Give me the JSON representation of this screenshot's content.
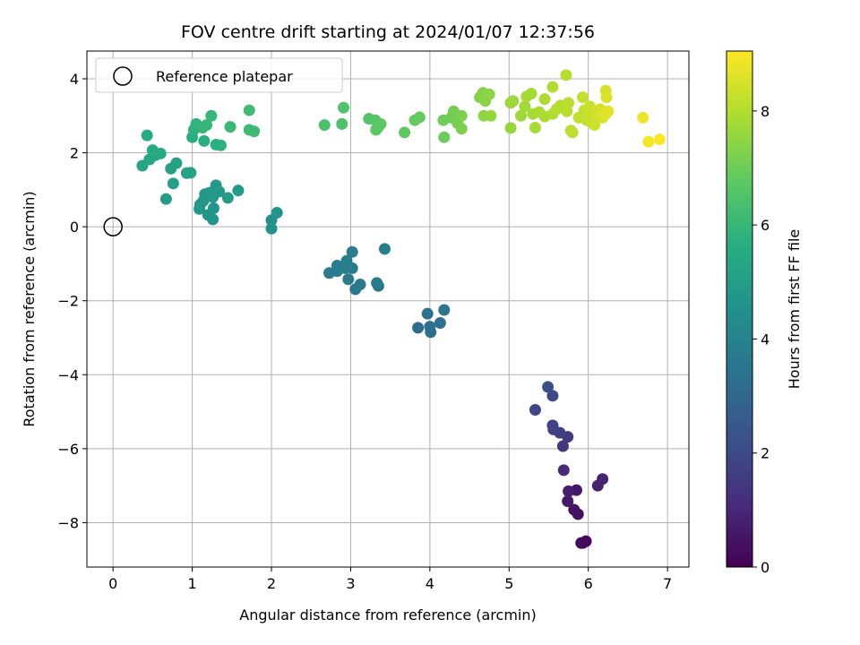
{
  "chart_data": {
    "type": "scatter",
    "title": "FOV centre drift starting at 2024/01/07 12:37:56",
    "xlabel": "Angular distance from reference (arcmin)",
    "ylabel": "Rotation from reference (arcmin)",
    "xlim": [
      -0.33,
      7.27
    ],
    "ylim": [
      -9.2,
      4.75
    ],
    "xticks": [
      0,
      1,
      2,
      3,
      4,
      5,
      6,
      7
    ],
    "yticks": [
      -8,
      -6,
      -4,
      -2,
      0,
      2,
      4
    ],
    "grid": true,
    "legend": {
      "location": "top-left",
      "entries": [
        "Reference platepar"
      ]
    },
    "reference_point": {
      "x": 0,
      "y": 0,
      "label": "Reference platepar"
    },
    "colorbar": {
      "label": "Hours from first FF file",
      "colormap": "viridis",
      "range": [
        0,
        9.05
      ],
      "ticks": [
        0,
        2,
        4,
        6,
        8
      ]
    },
    "points": [
      {
        "x": 5.91,
        "y": -8.55,
        "t": 0.1
      },
      {
        "x": 5.97,
        "y": -8.5,
        "t": 0.18
      },
      {
        "x": 5.93,
        "y": -8.55,
        "t": 0.25
      },
      {
        "x": 5.87,
        "y": -7.77,
        "t": 0.35
      },
      {
        "x": 5.82,
        "y": -7.65,
        "t": 0.45
      },
      {
        "x": 5.85,
        "y": -7.12,
        "t": 0.55
      },
      {
        "x": 5.74,
        "y": -7.42,
        "t": 0.65
      },
      {
        "x": 5.75,
        "y": -7.15,
        "t": 0.75
      },
      {
        "x": 6.12,
        "y": -7.0,
        "t": 0.85
      },
      {
        "x": 6.18,
        "y": -6.82,
        "t": 0.92
      },
      {
        "x": 5.69,
        "y": -6.58,
        "t": 1.05
      },
      {
        "x": 5.68,
        "y": -5.93,
        "t": 1.45
      },
      {
        "x": 5.74,
        "y": -5.68,
        "t": 1.55
      },
      {
        "x": 5.64,
        "y": -5.57,
        "t": 1.65
      },
      {
        "x": 5.56,
        "y": -5.48,
        "t": 1.75
      },
      {
        "x": 5.55,
        "y": -5.37,
        "t": 1.8
      },
      {
        "x": 5.33,
        "y": -4.95,
        "t": 1.9
      },
      {
        "x": 5.55,
        "y": -4.57,
        "t": 2.0
      },
      {
        "x": 5.49,
        "y": -4.33,
        "t": 2.1
      },
      {
        "x": 3.85,
        "y": -2.73,
        "t": 3.2
      },
      {
        "x": 4.01,
        "y": -2.85,
        "t": 3.25
      },
      {
        "x": 4.0,
        "y": -2.7,
        "t": 3.3
      },
      {
        "x": 4.13,
        "y": -2.6,
        "t": 3.35
      },
      {
        "x": 3.97,
        "y": -2.35,
        "t": 3.4
      },
      {
        "x": 4.18,
        "y": -2.25,
        "t": 3.5
      },
      {
        "x": 3.06,
        "y": -1.69,
        "t": 3.6
      },
      {
        "x": 3.35,
        "y": -1.6,
        "t": 3.62
      },
      {
        "x": 3.12,
        "y": -1.56,
        "t": 3.65
      },
      {
        "x": 3.33,
        "y": -1.52,
        "t": 3.68
      },
      {
        "x": 2.97,
        "y": -1.42,
        "t": 3.7
      },
      {
        "x": 2.73,
        "y": -1.25,
        "t": 3.72
      },
      {
        "x": 2.83,
        "y": -1.2,
        "t": 3.74
      },
      {
        "x": 2.83,
        "y": -1.05,
        "t": 3.76
      },
      {
        "x": 2.93,
        "y": -1.12,
        "t": 3.78
      },
      {
        "x": 3.02,
        "y": -1.12,
        "t": 3.8
      },
      {
        "x": 2.95,
        "y": -0.92,
        "t": 3.82
      },
      {
        "x": 3.02,
        "y": -0.68,
        "t": 3.84
      },
      {
        "x": 3.43,
        "y": -0.6,
        "t": 3.86
      },
      {
        "x": 2.0,
        "y": -0.05,
        "t": 4.6
      },
      {
        "x": 2.0,
        "y": 0.18,
        "t": 4.62
      },
      {
        "x": 2.07,
        "y": 0.38,
        "t": 4.65
      },
      {
        "x": 1.26,
        "y": 0.2,
        "t": 4.68
      },
      {
        "x": 1.2,
        "y": 0.32,
        "t": 4.7
      },
      {
        "x": 1.27,
        "y": 0.5,
        "t": 4.72
      },
      {
        "x": 1.09,
        "y": 0.48,
        "t": 4.74
      },
      {
        "x": 1.1,
        "y": 0.6,
        "t": 4.76
      },
      {
        "x": 1.14,
        "y": 0.7,
        "t": 4.78
      },
      {
        "x": 1.16,
        "y": 0.88,
        "t": 4.8
      },
      {
        "x": 1.22,
        "y": 0.92,
        "t": 4.82
      },
      {
        "x": 1.26,
        "y": 0.8,
        "t": 4.84
      },
      {
        "x": 1.3,
        "y": 1.12,
        "t": 4.86
      },
      {
        "x": 1.34,
        "y": 0.95,
        "t": 4.88
      },
      {
        "x": 1.45,
        "y": 0.78,
        "t": 4.9
      },
      {
        "x": 1.58,
        "y": 0.98,
        "t": 4.92
      },
      {
        "x": 0.67,
        "y": 0.75,
        "t": 5.0
      },
      {
        "x": 0.76,
        "y": 1.17,
        "t": 5.05
      },
      {
        "x": 0.73,
        "y": 1.57,
        "t": 5.1
      },
      {
        "x": 0.8,
        "y": 1.72,
        "t": 5.15
      },
      {
        "x": 0.93,
        "y": 1.45,
        "t": 5.2
      },
      {
        "x": 0.98,
        "y": 1.46,
        "t": 5.25
      },
      {
        "x": 0.37,
        "y": 1.65,
        "t": 5.3
      },
      {
        "x": 0.46,
        "y": 1.82,
        "t": 5.35
      },
      {
        "x": 0.53,
        "y": 1.93,
        "t": 5.4
      },
      {
        "x": 0.5,
        "y": 2.07,
        "t": 5.45
      },
      {
        "x": 0.6,
        "y": 1.98,
        "t": 5.5
      },
      {
        "x": 0.43,
        "y": 2.47,
        "t": 5.55
      },
      {
        "x": 1.0,
        "y": 2.42,
        "t": 5.6
      },
      {
        "x": 1.15,
        "y": 2.32,
        "t": 5.65
      },
      {
        "x": 1.3,
        "y": 2.22,
        "t": 5.7
      },
      {
        "x": 1.36,
        "y": 2.2,
        "t": 5.75
      },
      {
        "x": 1.02,
        "y": 2.62,
        "t": 5.8
      },
      {
        "x": 1.05,
        "y": 2.78,
        "t": 5.85
      },
      {
        "x": 1.13,
        "y": 2.68,
        "t": 5.9
      },
      {
        "x": 1.18,
        "y": 2.75,
        "t": 5.95
      },
      {
        "x": 1.24,
        "y": 3.0,
        "t": 6.0
      },
      {
        "x": 1.48,
        "y": 2.7,
        "t": 6.05
      },
      {
        "x": 1.72,
        "y": 2.62,
        "t": 6.1
      },
      {
        "x": 1.78,
        "y": 2.58,
        "t": 6.15
      },
      {
        "x": 1.72,
        "y": 3.15,
        "t": 6.2
      },
      {
        "x": 2.67,
        "y": 2.75,
        "t": 6.4
      },
      {
        "x": 2.89,
        "y": 2.78,
        "t": 6.45
      },
      {
        "x": 2.91,
        "y": 3.22,
        "t": 6.5
      },
      {
        "x": 3.23,
        "y": 2.92,
        "t": 6.55
      },
      {
        "x": 3.31,
        "y": 2.88,
        "t": 6.6
      },
      {
        "x": 3.35,
        "y": 2.7,
        "t": 6.65
      },
      {
        "x": 3.32,
        "y": 2.62,
        "t": 6.7
      },
      {
        "x": 3.38,
        "y": 2.78,
        "t": 6.75
      },
      {
        "x": 3.68,
        "y": 2.55,
        "t": 6.8
      },
      {
        "x": 3.81,
        "y": 2.88,
        "t": 6.85
      },
      {
        "x": 3.87,
        "y": 2.96,
        "t": 6.9
      },
      {
        "x": 4.18,
        "y": 2.42,
        "t": 6.95
      },
      {
        "x": 4.17,
        "y": 2.88,
        "t": 7.0
      },
      {
        "x": 4.27,
        "y": 2.95,
        "t": 7.05
      },
      {
        "x": 4.3,
        "y": 3.12,
        "t": 7.1
      },
      {
        "x": 4.35,
        "y": 2.8,
        "t": 7.15
      },
      {
        "x": 4.4,
        "y": 2.65,
        "t": 7.2
      },
      {
        "x": 4.4,
        "y": 3.0,
        "t": 7.25
      },
      {
        "x": 4.63,
        "y": 3.5,
        "t": 7.3
      },
      {
        "x": 4.67,
        "y": 3.62,
        "t": 7.35
      },
      {
        "x": 4.7,
        "y": 3.4,
        "t": 7.4
      },
      {
        "x": 4.75,
        "y": 3.58,
        "t": 7.45
      },
      {
        "x": 4.68,
        "y": 3.0,
        "t": 7.5
      },
      {
        "x": 4.77,
        "y": 3.0,
        "t": 7.55
      },
      {
        "x": 5.02,
        "y": 2.67,
        "t": 7.6
      },
      {
        "x": 5.02,
        "y": 3.35,
        "t": 7.65
      },
      {
        "x": 5.05,
        "y": 3.4,
        "t": 7.7
      },
      {
        "x": 5.15,
        "y": 3.0,
        "t": 7.72
      },
      {
        "x": 5.2,
        "y": 3.25,
        "t": 7.75
      },
      {
        "x": 5.22,
        "y": 3.52,
        "t": 7.78
      },
      {
        "x": 5.28,
        "y": 3.6,
        "t": 7.8
      },
      {
        "x": 5.3,
        "y": 3.05,
        "t": 7.82
      },
      {
        "x": 5.33,
        "y": 2.68,
        "t": 7.85
      },
      {
        "x": 5.38,
        "y": 3.1,
        "t": 7.88
      },
      {
        "x": 5.45,
        "y": 2.98,
        "t": 7.9
      },
      {
        "x": 5.45,
        "y": 3.45,
        "t": 7.92
      },
      {
        "x": 5.55,
        "y": 3.78,
        "t": 7.95
      },
      {
        "x": 5.55,
        "y": 3.05,
        "t": 7.98
      },
      {
        "x": 5.6,
        "y": 3.18,
        "t": 8.0
      },
      {
        "x": 5.65,
        "y": 3.28,
        "t": 8.02
      },
      {
        "x": 5.72,
        "y": 4.1,
        "t": 8.05
      },
      {
        "x": 5.73,
        "y": 3.12,
        "t": 8.08
      },
      {
        "x": 5.75,
        "y": 3.35,
        "t": 8.1
      },
      {
        "x": 5.78,
        "y": 2.6,
        "t": 8.12
      },
      {
        "x": 5.8,
        "y": 2.55,
        "t": 8.15
      },
      {
        "x": 5.88,
        "y": 2.95,
        "t": 8.18
      },
      {
        "x": 5.93,
        "y": 3.5,
        "t": 8.2
      },
      {
        "x": 5.95,
        "y": 3.15,
        "t": 8.22
      },
      {
        "x": 5.98,
        "y": 2.88,
        "t": 8.25
      },
      {
        "x": 6.0,
        "y": 3.05,
        "t": 8.28
      },
      {
        "x": 6.02,
        "y": 3.25,
        "t": 8.3
      },
      {
        "x": 6.05,
        "y": 2.8,
        "t": 8.33
      },
      {
        "x": 6.08,
        "y": 2.75,
        "t": 8.36
      },
      {
        "x": 6.1,
        "y": 3.12,
        "t": 8.4
      },
      {
        "x": 6.12,
        "y": 3.0,
        "t": 8.43
      },
      {
        "x": 6.15,
        "y": 3.18,
        "t": 8.46
      },
      {
        "x": 6.18,
        "y": 2.95,
        "t": 8.5
      },
      {
        "x": 6.22,
        "y": 3.68,
        "t": 8.53
      },
      {
        "x": 6.23,
        "y": 3.5,
        "t": 8.56
      },
      {
        "x": 6.22,
        "y": 3.05,
        "t": 8.6
      },
      {
        "x": 6.25,
        "y": 3.12,
        "t": 8.65
      },
      {
        "x": 6.69,
        "y": 2.95,
        "t": 8.8
      },
      {
        "x": 6.76,
        "y": 2.3,
        "t": 8.9
      },
      {
        "x": 6.9,
        "y": 2.36,
        "t": 9.0
      }
    ]
  }
}
